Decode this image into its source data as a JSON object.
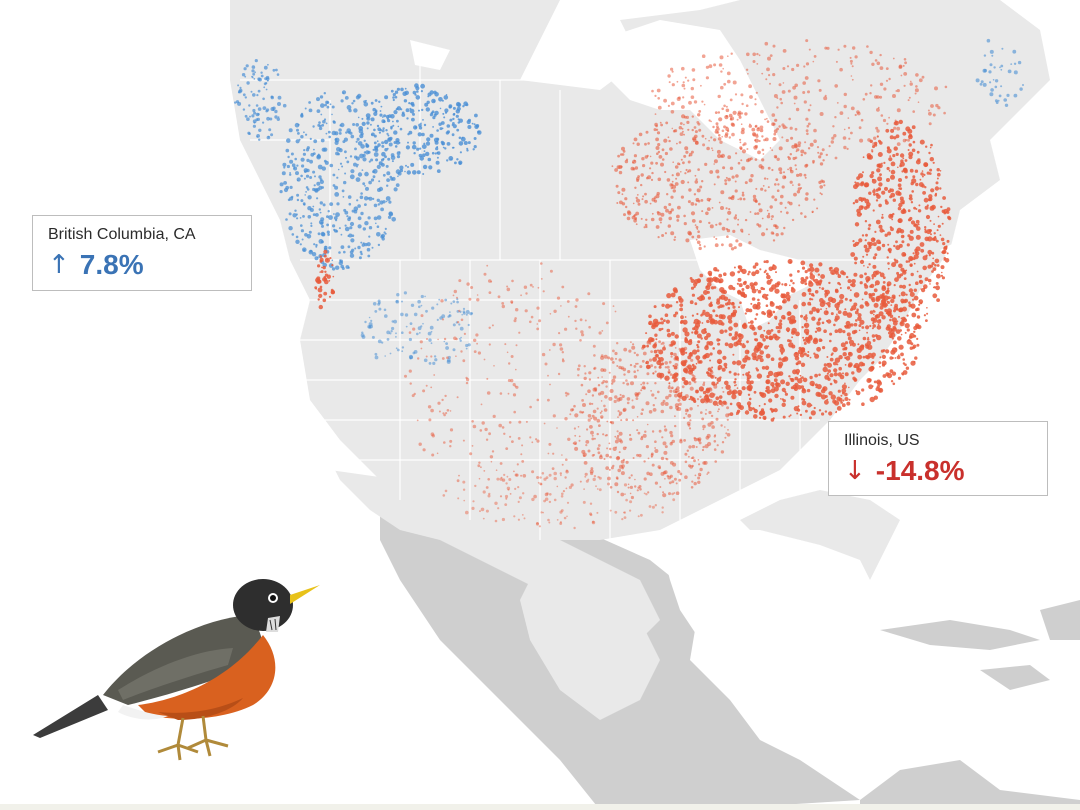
{
  "callouts": {
    "british_columbia": {
      "region": "British Columbia, CA",
      "arrow": "↑",
      "value": "7.8%",
      "direction": "increase"
    },
    "illinois": {
      "region": "Illinois, US",
      "arrow": "↓",
      "value": "-14.8%",
      "direction": "decrease"
    }
  },
  "colors": {
    "increase": "#3a73b5",
    "decrease": "#d03a2a",
    "land_in_range": "#e9e9e9",
    "land_out_of_range": "#cfcfcf",
    "water": "#ffffff",
    "dot_increase": "#4a8fd4",
    "dot_decrease": "#e85a3c"
  },
  "icons": {
    "bird": "american-robin-illustration",
    "up": "arrow-up-icon",
    "down": "arrow-down-icon"
  }
}
